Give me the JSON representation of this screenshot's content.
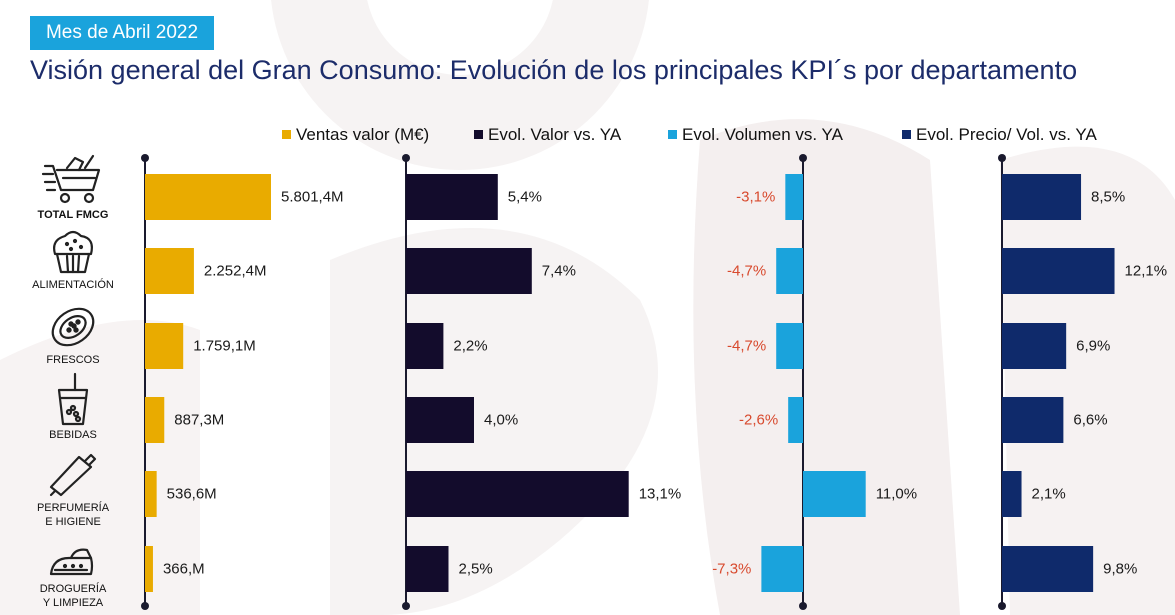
{
  "header": {
    "badge": "Mes de Abril 2022",
    "title": "Visión general del Gran Consumo: Evolución de los principales KPI´s por departamento"
  },
  "colors": {
    "ventas": "#e9ab00",
    "valor": "#130c2c",
    "volumen": "#1aa3dc",
    "precio": "#0f2a6b",
    "negative_label": "#d84a2e",
    "title": "#1c2c6a"
  },
  "categories": [
    {
      "label": "TOTAL FMCG",
      "icon": "shopping-cart-icon"
    },
    {
      "label": "ALIMENTACIÓN",
      "icon": "muffin-icon"
    },
    {
      "label": "FRESCOS",
      "icon": "papaya-icon"
    },
    {
      "label": "BEBIDAS",
      "icon": "drink-cup-icon"
    },
    {
      "label": "PERFUMERÍA\nE HIGIENE",
      "icon": "cream-tube-icon"
    },
    {
      "label": "DROGUERÍA\nY LIMPIEZA",
      "icon": "iron-icon"
    }
  ],
  "chart_data": {
    "type": "bar",
    "orientation": "horizontal",
    "categories": [
      "TOTAL FMCG",
      "ALIMENTACIÓN",
      "FRESCOS",
      "BEBIDAS",
      "PERFUMERÍA E HIGIENE",
      "DROGUERÍA Y LIMPIEZA"
    ],
    "series": [
      {
        "name": "Ventas valor (M€)",
        "values": [
          5801.4,
          2252.4,
          1759.1,
          887.3,
          536.6,
          366.0
        ],
        "labels": [
          "5.801,4M",
          "2.252,4M",
          "1.759,1M",
          "887,3M",
          "536,6M",
          "366,M"
        ]
      },
      {
        "name": "Evol. Valor vs. YA",
        "values": [
          5.4,
          7.4,
          2.2,
          4.0,
          13.1,
          2.5
        ],
        "labels": [
          "5,4%",
          "7,4%",
          "2,2%",
          "4,0%",
          "13,1%",
          "2,5%"
        ]
      },
      {
        "name": "Evol. Volumen vs. YA",
        "values": [
          -3.1,
          -4.7,
          -4.7,
          -2.6,
          11.0,
          -7.3
        ],
        "labels": [
          "-3,1%",
          "-4,7%",
          "-4,7%",
          "-2,6%",
          "11,0%",
          "-7,3%"
        ]
      },
      {
        "name": "Evol. Precio/ Vol. vs. YA",
        "values": [
          8.5,
          12.1,
          6.9,
          6.6,
          2.1,
          9.8
        ],
        "labels": [
          "8,5%",
          "12,1%",
          "6,9%",
          "6,6%",
          "2,1%",
          "9,8%"
        ]
      }
    ],
    "legend_position": "top",
    "grid": false
  }
}
